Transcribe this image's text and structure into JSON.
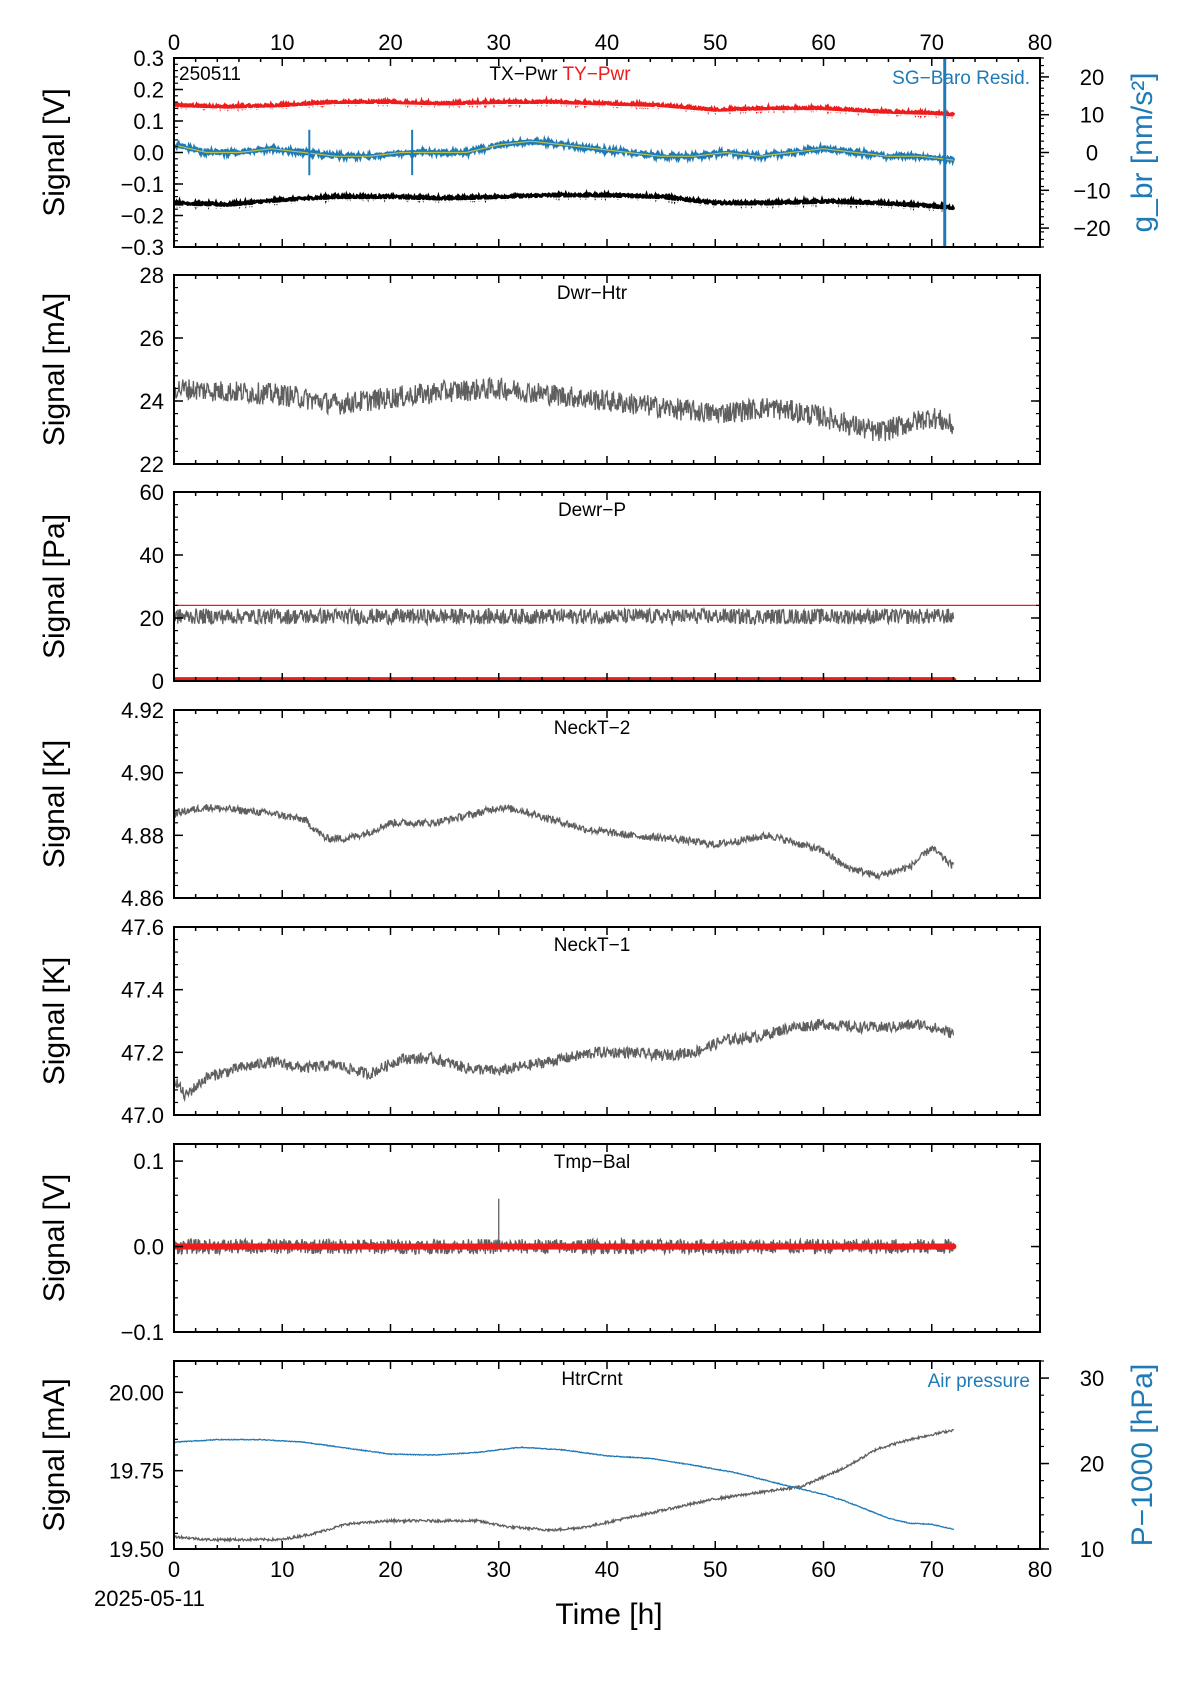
{
  "figure": {
    "date_label": "2025-05-11",
    "xlabel": "Time [h]",
    "xlim": [
      0,
      80
    ],
    "xticks": [
      0,
      10,
      20,
      30,
      40,
      50,
      60,
      70,
      80
    ],
    "colors": {
      "trace": "#5f5f5f",
      "red": "#ee1c1c",
      "blue": "#1f7ab8",
      "black": "#000000"
    }
  },
  "chart_data": [
    {
      "type": "line",
      "panel": 1,
      "corner_label": "250511",
      "title_parts": [
        "TX−Pwr",
        "TY−Pwr"
      ],
      "right_title": "SG−Baro Resid.",
      "ylabel": "Signal [V]",
      "ylim": [
        -0.3,
        0.3
      ],
      "yticks": [
        -0.3,
        -0.2,
        -0.1,
        0.0,
        0.1,
        0.2,
        0.3
      ],
      "ytick_labels": [
        "−0.3",
        "−0.2",
        "−0.1",
        "0.0",
        "0.1",
        "0.2",
        "0.3"
      ],
      "right_ylabel": "g_br [nm/s²]",
      "right_ylim": [
        -25,
        25
      ],
      "right_yticks": [
        -20,
        -10,
        0,
        10,
        20
      ],
      "right_ytick_labels": [
        "−20",
        "−10",
        "0",
        "10",
        "20"
      ],
      "series": [
        {
          "name": "TY−Pwr",
          "color": "#ee1c1c",
          "axis": "left",
          "x": [
            0,
            5,
            10,
            15,
            20,
            25,
            30,
            35,
            40,
            45,
            50,
            55,
            60,
            65,
            70,
            72
          ],
          "y": [
            0.15,
            0.145,
            0.15,
            0.16,
            0.16,
            0.155,
            0.16,
            0.16,
            0.155,
            0.15,
            0.135,
            0.14,
            0.14,
            0.13,
            0.125,
            0.12
          ]
        },
        {
          "name": "TX−Pwr",
          "color": "#000000",
          "axis": "left",
          "x": [
            0,
            5,
            10,
            15,
            20,
            25,
            30,
            35,
            40,
            45,
            50,
            55,
            60,
            65,
            70,
            72
          ],
          "y": [
            -0.16,
            -0.165,
            -0.15,
            -0.14,
            -0.14,
            -0.145,
            -0.14,
            -0.135,
            -0.135,
            -0.14,
            -0.16,
            -0.16,
            -0.155,
            -0.16,
            -0.17,
            -0.175
          ]
        },
        {
          "name": "SG−Baro Resid.",
          "color": "#1f7ab8",
          "axis": "right",
          "x": [
            0,
            3,
            6,
            9,
            12,
            15,
            18,
            21,
            24,
            27,
            30,
            33,
            36,
            39,
            42,
            45,
            48,
            51,
            54,
            57,
            60,
            63,
            66,
            69,
            72
          ],
          "y": [
            2,
            0,
            0,
            1,
            0,
            -1,
            -1,
            0,
            0,
            0,
            2,
            3,
            2,
            1,
            0,
            -1,
            -1,
            0,
            -1,
            0,
            1,
            0,
            -1,
            -1,
            -2
          ]
        }
      ],
      "spikes": [
        {
          "x": 71.2,
          "axis": "right",
          "y_from": -25,
          "y_to": 25
        }
      ]
    },
    {
      "type": "line",
      "panel": 2,
      "title": "Dwr−Htr",
      "ylabel": "Signal [mA]",
      "ylim": [
        22,
        28
      ],
      "yticks": [
        22,
        24,
        26,
        28
      ],
      "ytick_labels": [
        "22",
        "24",
        "26",
        "28"
      ],
      "series": [
        {
          "color": "#5f5f5f",
          "noise": 0.35,
          "x": [
            0,
            5,
            10,
            15,
            20,
            25,
            30,
            35,
            40,
            45,
            50,
            55,
            60,
            65,
            70,
            72
          ],
          "y": [
            24.4,
            24.3,
            24.2,
            23.9,
            24.1,
            24.3,
            24.4,
            24.2,
            24.0,
            23.8,
            23.6,
            23.8,
            23.5,
            23.0,
            23.5,
            23.2
          ]
        }
      ]
    },
    {
      "type": "line",
      "panel": 3,
      "title": "Dewr−P",
      "ylabel": "Signal [Pa]",
      "ylim": [
        0,
        60
      ],
      "yticks": [
        0,
        20,
        40,
        60
      ],
      "ytick_labels": [
        "0",
        "20",
        "40",
        "60"
      ],
      "hline": {
        "y": 24.0,
        "color": "#ee1c1c"
      },
      "series": [
        {
          "color": "#5f5f5f",
          "noise": 2.5,
          "x": [
            0,
            10,
            20,
            30,
            40,
            50,
            60,
            70,
            72
          ],
          "y": [
            20.5,
            20.5,
            20.5,
            20.5,
            20.5,
            20.5,
            20.5,
            20.5,
            20.5
          ]
        },
        {
          "color": "#ee1c1c",
          "thick": true,
          "x": [
            0,
            72
          ],
          "y": [
            0.3,
            0.3
          ]
        }
      ]
    },
    {
      "type": "line",
      "panel": 4,
      "title": "NeckT−2",
      "ylabel": "Signal [K]",
      "ylim": [
        4.86,
        4.92
      ],
      "yticks": [
        4.86,
        4.88,
        4.9,
        4.92
      ],
      "ytick_labels": [
        "4.86",
        "4.88",
        "4.90",
        "4.92"
      ],
      "series": [
        {
          "color": "#5f5f5f",
          "noise": 0.0012,
          "x": [
            0,
            3,
            6,
            9,
            12,
            14,
            16,
            18,
            20,
            24,
            28,
            30,
            32,
            34,
            38,
            42,
            46,
            50,
            55,
            60,
            62,
            65,
            68,
            70,
            72
          ],
          "y": [
            4.887,
            4.889,
            4.888,
            4.887,
            4.885,
            4.879,
            4.879,
            4.881,
            4.884,
            4.884,
            4.887,
            4.889,
            4.888,
            4.886,
            4.882,
            4.88,
            4.879,
            4.877,
            4.88,
            4.875,
            4.87,
            4.867,
            4.87,
            4.876,
            4.87
          ]
        }
      ]
    },
    {
      "type": "line",
      "panel": 5,
      "title": "NeckT−1",
      "ylabel": "Signal [K]",
      "ylim": [
        47.0,
        47.6
      ],
      "yticks": [
        47.0,
        47.2,
        47.4,
        47.6
      ],
      "ytick_labels": [
        "47.0",
        "47.2",
        "47.4",
        "47.6"
      ],
      "series": [
        {
          "color": "#5f5f5f",
          "noise": 0.018,
          "x": [
            0,
            1,
            3,
            6,
            9,
            12,
            15,
            18,
            21,
            24,
            27,
            30,
            33,
            36,
            39,
            42,
            45,
            48,
            51,
            54,
            57,
            60,
            63,
            66,
            69,
            72
          ],
          "y": [
            47.12,
            47.06,
            47.12,
            47.15,
            47.17,
            47.15,
            47.16,
            47.13,
            47.18,
            47.18,
            47.15,
            47.14,
            47.16,
            47.18,
            47.2,
            47.2,
            47.19,
            47.2,
            47.24,
            47.25,
            47.28,
            47.29,
            47.28,
            47.28,
            47.29,
            47.26
          ]
        }
      ]
    },
    {
      "type": "line",
      "panel": 6,
      "title": "Tmp−Bal",
      "ylabel": "Signal [V]",
      "ylim": [
        -0.1,
        0.12
      ],
      "yticks": [
        -0.1,
        0.0,
        0.1
      ],
      "ytick_labels": [
        "−0.1",
        "0.0",
        "0.1"
      ],
      "series": [
        {
          "color": "#5f5f5f",
          "noise": 0.009,
          "x": [
            0,
            72
          ],
          "y": [
            0.0,
            0.0
          ]
        },
        {
          "color": "#ee1c1c",
          "thick": true,
          "x": [
            0,
            72
          ],
          "y": [
            0.0,
            0.0
          ]
        }
      ],
      "spikes": [
        {
          "x": 30.0,
          "axis": "left",
          "y_from": 0.0,
          "y_to": 0.056,
          "color": "#5f5f5f"
        }
      ]
    },
    {
      "type": "line",
      "panel": 7,
      "title": "HtrCrnt",
      "right_title": "Air pressure",
      "ylabel": "Signal [mA]",
      "ylim": [
        19.5,
        20.1
      ],
      "yticks": [
        19.5,
        19.75,
        20.0
      ],
      "ytick_labels": [
        "19.50",
        "19.75",
        "20.00"
      ],
      "right_ylabel": "P−1000 [hPa]",
      "right_ylim": [
        10,
        32
      ],
      "right_yticks": [
        10,
        20,
        30
      ],
      "right_ytick_labels": [
        "10",
        "20",
        "30"
      ],
      "series": [
        {
          "color": "#5f5f5f",
          "axis": "left",
          "noise": 0.004,
          "x": [
            0,
            3,
            6,
            10,
            13,
            16,
            20,
            24,
            28,
            31,
            35,
            38,
            42,
            46,
            50,
            54,
            58,
            62,
            65,
            68,
            72
          ],
          "y": [
            19.54,
            19.53,
            19.53,
            19.53,
            19.55,
            19.58,
            19.59,
            19.59,
            19.59,
            19.57,
            19.56,
            19.57,
            19.6,
            19.63,
            19.66,
            19.68,
            19.7,
            19.76,
            19.82,
            19.85,
            19.88
          ]
        },
        {
          "color": "#1f7ab8",
          "axis": "right",
          "noise": 0.05,
          "x": [
            0,
            4,
            8,
            12,
            16,
            20,
            24,
            28,
            32,
            36,
            40,
            44,
            48,
            52,
            56,
            60,
            62,
            64,
            66,
            68,
            70,
            72
          ],
          "y": [
            22.5,
            22.8,
            22.8,
            22.5,
            21.8,
            21.1,
            21.0,
            21.3,
            21.9,
            21.6,
            20.9,
            20.6,
            19.8,
            18.9,
            17.6,
            16.4,
            15.6,
            14.6,
            13.6,
            13.0,
            12.9,
            12.3
          ]
        }
      ]
    }
  ]
}
